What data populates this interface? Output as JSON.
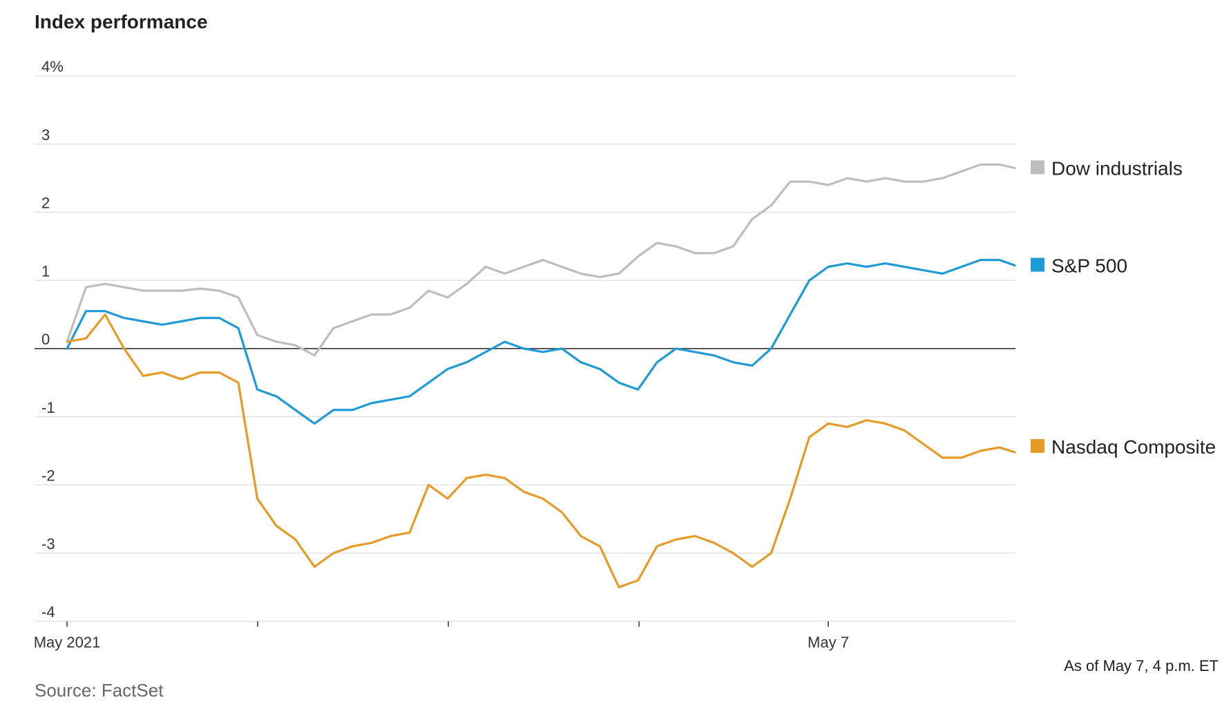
{
  "title": "Index performance",
  "note": "As of May 7, 4 p.m. ET",
  "source": "Source: FactSet",
  "chart_data": {
    "type": "line",
    "title": "Index performance",
    "xlabel": "",
    "ylabel": "",
    "ylim": [
      -4,
      4
    ],
    "y_ticks": [
      4,
      3,
      2,
      1,
      0,
      -1,
      -2,
      -3,
      -4
    ],
    "y_tick_labels": [
      "4%",
      "3",
      "2",
      "1",
      "0",
      "-1",
      "-2",
      "-3",
      "-4"
    ],
    "x_range": [
      0,
      5
    ],
    "x_ticks": [
      0,
      1,
      2,
      3,
      4
    ],
    "x_tick_labels": [
      "May 2021",
      "",
      "",
      "",
      "May 7"
    ],
    "grid": true,
    "legend": "right",
    "x": [
      0,
      0.1,
      0.2,
      0.3,
      0.4,
      0.5,
      0.6,
      0.7,
      0.8,
      0.9,
      1.0,
      1.1,
      1.2,
      1.3,
      1.4,
      1.5,
      1.6,
      1.7,
      1.8,
      1.9,
      2.0,
      2.1,
      2.2,
      2.3,
      2.4,
      2.5,
      2.6,
      2.7,
      2.8,
      2.9,
      3.0,
      3.1,
      3.2,
      3.3,
      3.4,
      3.5,
      3.6,
      3.7,
      3.8,
      3.9,
      4.0,
      4.1,
      4.2,
      4.3,
      4.4,
      4.5,
      4.6,
      4.7,
      4.8,
      4.9,
      4.98
    ],
    "series": [
      {
        "name": "Dow industrials",
        "color": "#bdbdbd",
        "values": [
          0.1,
          0.9,
          0.95,
          0.9,
          0.85,
          0.85,
          0.85,
          0.88,
          0.85,
          0.75,
          0.2,
          0.1,
          0.05,
          -0.1,
          0.3,
          0.4,
          0.5,
          0.5,
          0.6,
          0.85,
          0.75,
          0.95,
          1.2,
          1.1,
          1.2,
          1.3,
          1.2,
          1.1,
          1.05,
          1.1,
          1.35,
          1.55,
          1.5,
          1.4,
          1.4,
          1.5,
          1.9,
          2.1,
          2.45,
          2.45,
          2.4,
          2.5,
          2.45,
          2.5,
          2.45,
          2.45,
          2.5,
          2.6,
          2.7,
          2.7,
          2.65
        ]
      },
      {
        "name": "S&P 500",
        "color": "#1e9bd7",
        "values": [
          0.0,
          0.55,
          0.55,
          0.45,
          0.4,
          0.35,
          0.4,
          0.45,
          0.45,
          0.3,
          -0.6,
          -0.7,
          -0.9,
          -1.1,
          -0.9,
          -0.9,
          -0.8,
          -0.75,
          -0.7,
          -0.5,
          -0.3,
          -0.2,
          -0.05,
          0.1,
          0.0,
          -0.05,
          0.0,
          -0.2,
          -0.3,
          -0.5,
          -0.6,
          -0.2,
          0.0,
          -0.05,
          -0.1,
          -0.2,
          -0.25,
          0.0,
          0.5,
          1.0,
          1.2,
          1.25,
          1.2,
          1.25,
          1.2,
          1.15,
          1.1,
          1.2,
          1.3,
          1.3,
          1.22
        ]
      },
      {
        "name": "Nasdaq Composite",
        "color": "#e89a26",
        "values": [
          0.1,
          0.15,
          0.5,
          0.0,
          -0.4,
          -0.35,
          -0.45,
          -0.35,
          -0.35,
          -0.5,
          -2.2,
          -2.6,
          -2.8,
          -3.2,
          -3.0,
          -2.9,
          -2.85,
          -2.75,
          -2.7,
          -2.0,
          -2.2,
          -1.9,
          -1.85,
          -1.9,
          -2.1,
          -2.2,
          -2.4,
          -2.75,
          -2.9,
          -3.5,
          -3.4,
          -2.9,
          -2.8,
          -2.75,
          -2.85,
          -3.0,
          -3.2,
          -3.0,
          -2.2,
          -1.3,
          -1.1,
          -1.15,
          -1.05,
          -1.1,
          -1.2,
          -1.4,
          -1.6,
          -1.6,
          -1.5,
          -1.45,
          -1.52
        ]
      }
    ]
  }
}
